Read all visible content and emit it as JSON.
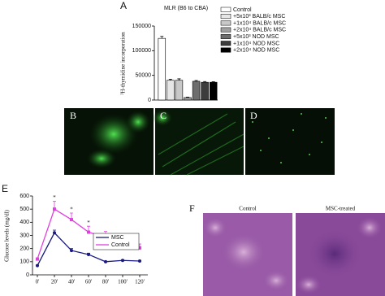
{
  "chart_data": [
    {
      "type": "bar",
      "label": "A",
      "title": "MLR (B6 to CBA)",
      "y_label": "³H-thymidine incorporation",
      "ylim": [
        0,
        150000
      ],
      "yticks": [
        0,
        50000,
        100000,
        150000
      ],
      "series": [
        {
          "name": "Control",
          "color": "#ffffff",
          "values": [
            125000
          ],
          "errors": [
            4000
          ]
        },
        {
          "name": "+5x10³ BALB/c MSC",
          "color": "#e6e6e6",
          "values": [
            40000
          ],
          "errors": [
            2000
          ]
        },
        {
          "name": "+1x10⁴ BALB/c MSC",
          "color": "#c8c8c8",
          "values": [
            40000
          ],
          "errors": [
            3000
          ]
        },
        {
          "name": "+2x10⁴ BALB/c MSC",
          "color": "#a0a0a0",
          "values": [
            5000
          ],
          "errors": [
            1000
          ]
        },
        {
          "name": "+5x10³ NOD MSC",
          "color": "#6e6e6e",
          "values": [
            38000
          ],
          "errors": [
            1500
          ]
        },
        {
          "name": "+1x10⁴ NOD MSC",
          "color": "#3c3c3c",
          "values": [
            36000
          ],
          "errors": [
            1500
          ]
        },
        {
          "name": "+2x10⁴ NOD MSC",
          "color": "#000000",
          "values": [
            36000
          ],
          "errors": [
            1000
          ]
        }
      ]
    },
    {
      "type": "line",
      "label": "E",
      "y_label": "Glucose levels (mg/dl)",
      "categories": [
        "0'",
        "20'",
        "40'",
        "60'",
        "80'",
        "100'",
        "120'"
      ],
      "ylim": [
        0,
        600
      ],
      "yticks": [
        0,
        100,
        200,
        300,
        400,
        500,
        600
      ],
      "markers": [
        null,
        "*",
        "*",
        "*",
        null,
        null,
        null
      ],
      "series": [
        {
          "name": "MSC",
          "color": "#1a1a80",
          "values": [
            70,
            320,
            185,
            155,
            100,
            110,
            105
          ],
          "errors": [
            5,
            20,
            15,
            10,
            5,
            5,
            5
          ]
        },
        {
          "name": "Control",
          "color": "#e040e0",
          "values": [
            120,
            500,
            420,
            325,
            285,
            250,
            205
          ],
          "errors": [
            10,
            60,
            50,
            45,
            45,
            35,
            30
          ]
        }
      ]
    }
  ],
  "fluorescence": {
    "labels": [
      "B",
      "C",
      "D"
    ]
  },
  "histology": {
    "label": "F",
    "captions": [
      "Control",
      "MSC-treated"
    ]
  }
}
